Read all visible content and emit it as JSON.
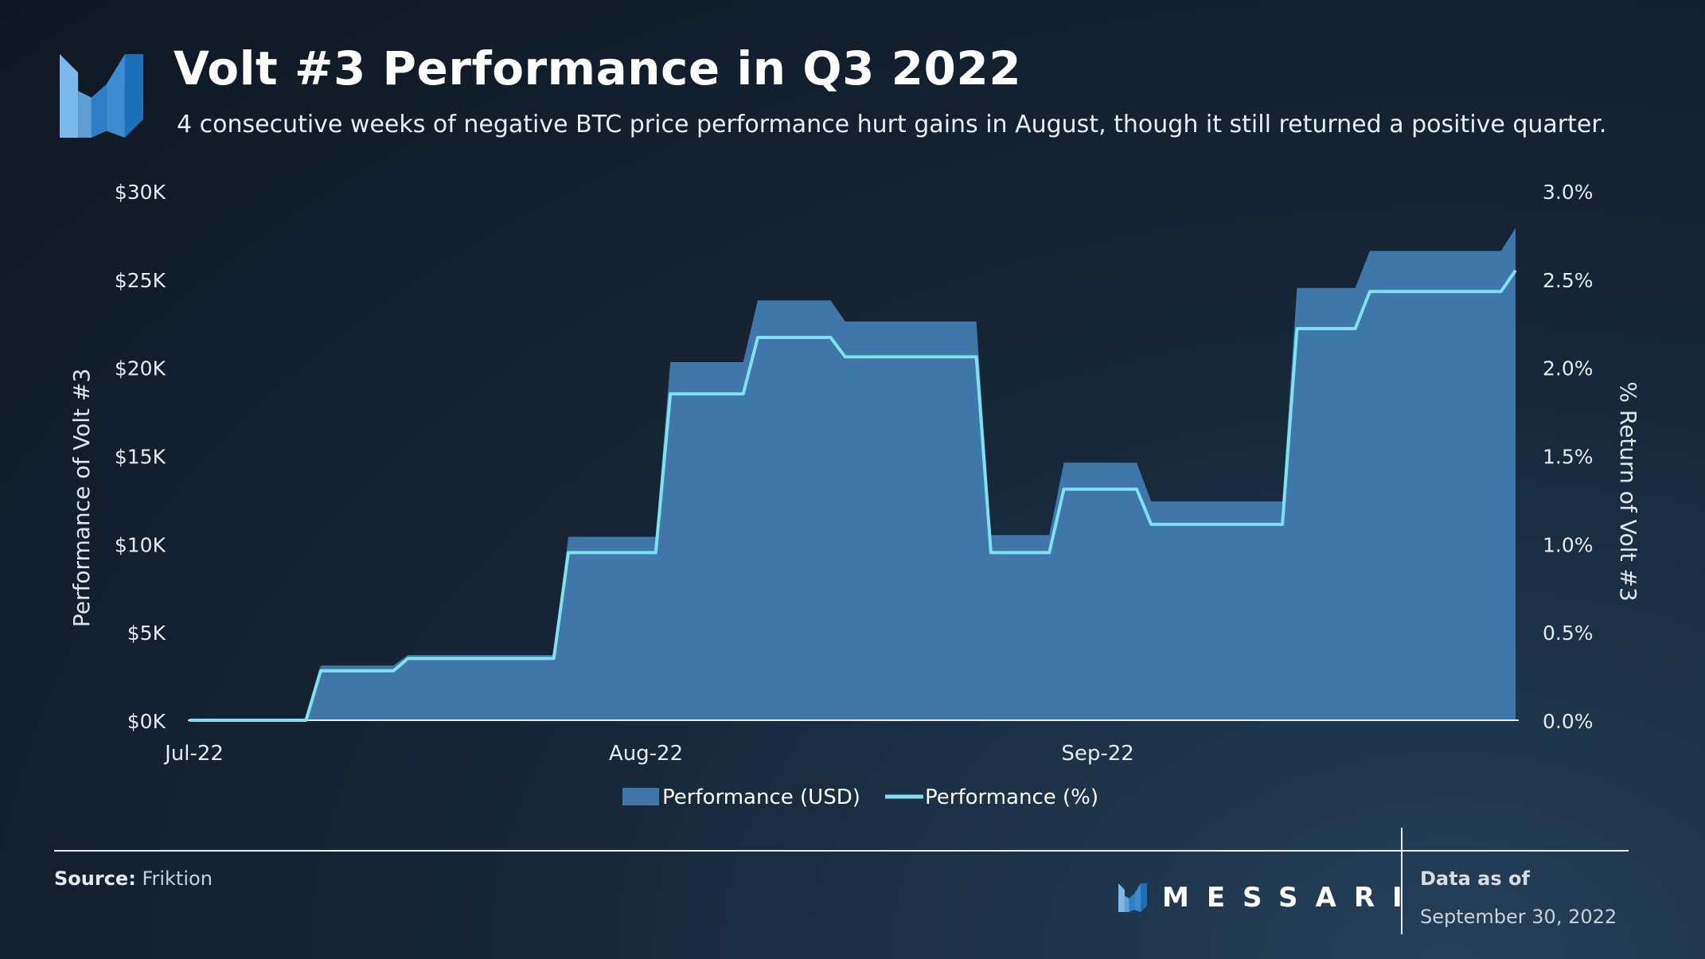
{
  "header": {
    "title": "Volt #3 Performance in Q3 2022",
    "subtitle": "4 consecutive weeks of negative BTC price performance hurt gains in August, though it still returned a positive quarter."
  },
  "colors": {
    "area_fill": "#3e77a8",
    "area_edge": "#4a84b6",
    "line": "#7fe1ee",
    "axis": "#e8ecf0",
    "logo_light": "#7ab9ea",
    "logo_dark": "#1d6fb8"
  },
  "chart_data": {
    "type": "area",
    "x": [
      "2022-07-01",
      "2022-07-09",
      "2022-07-10",
      "2022-07-15",
      "2022-07-16",
      "2022-07-20",
      "2022-07-21",
      "2022-07-26",
      "2022-07-27",
      "2022-08-02",
      "2022-08-03",
      "2022-08-08",
      "2022-08-09",
      "2022-08-14",
      "2022-08-15",
      "2022-08-19",
      "2022-08-20",
      "2022-08-24",
      "2022-08-25",
      "2022-08-29",
      "2022-08-30",
      "2022-09-04",
      "2022-09-05",
      "2022-09-09",
      "2022-09-10",
      "2022-09-14",
      "2022-09-15",
      "2022-09-19",
      "2022-09-20",
      "2022-09-25",
      "2022-09-26",
      "2022-09-29",
      "2022-09-30"
    ],
    "series": [
      {
        "name": "Performance (USD)",
        "axis": "left",
        "values": [
          0,
          0,
          3100,
          3100,
          3700,
          3700,
          3700,
          3700,
          10400,
          10400,
          20300,
          20300,
          23800,
          23800,
          22600,
          22600,
          22600,
          22600,
          10500,
          10500,
          14600,
          14600,
          12400,
          12400,
          12400,
          12400,
          24500,
          24500,
          26600,
          26600,
          26600,
          26600,
          27900
        ]
      },
      {
        "name": "Performance (%)",
        "axis": "right",
        "values": [
          0,
          0,
          0.28,
          0.28,
          0.35,
          0.35,
          0.35,
          0.35,
          0.95,
          0.95,
          1.85,
          1.85,
          2.17,
          2.17,
          2.06,
          2.06,
          2.06,
          2.06,
          0.95,
          0.95,
          1.31,
          1.31,
          1.11,
          1.11,
          1.11,
          1.11,
          2.22,
          2.22,
          2.43,
          2.43,
          2.43,
          2.43,
          2.55
        ]
      }
    ],
    "left_axis": {
      "label": "Performance of Volt #3",
      "range": [
        0,
        30000
      ],
      "ticks": [
        "$0K",
        "$5K",
        "$10K",
        "$15K",
        "$20K",
        "$25K",
        "$30K"
      ]
    },
    "right_axis": {
      "label": "% Return of Volt #3",
      "range": [
        0,
        3
      ],
      "ticks": [
        "0.0%",
        "0.5%",
        "1.0%",
        "1.5%",
        "2.0%",
        "2.5%",
        "3.0%"
      ]
    },
    "x_ticks": [
      {
        "date": "2022-07-01",
        "label": "Jul-22"
      },
      {
        "date": "2022-08-01",
        "label": "Aug-22"
      },
      {
        "date": "2022-09-01",
        "label": "Sep-22"
      }
    ],
    "x_range": [
      "2022-07-01",
      "2022-09-30"
    ],
    "grid": false,
    "legend": {
      "position": "bottom-center",
      "items": [
        "Performance (USD)",
        "Performance (%)"
      ]
    }
  },
  "footer": {
    "source_label": "Source:",
    "source_value": "Friktion",
    "brand": "MESSARI",
    "asof_label": "Data as of",
    "asof_date": "September 30, 2022"
  }
}
